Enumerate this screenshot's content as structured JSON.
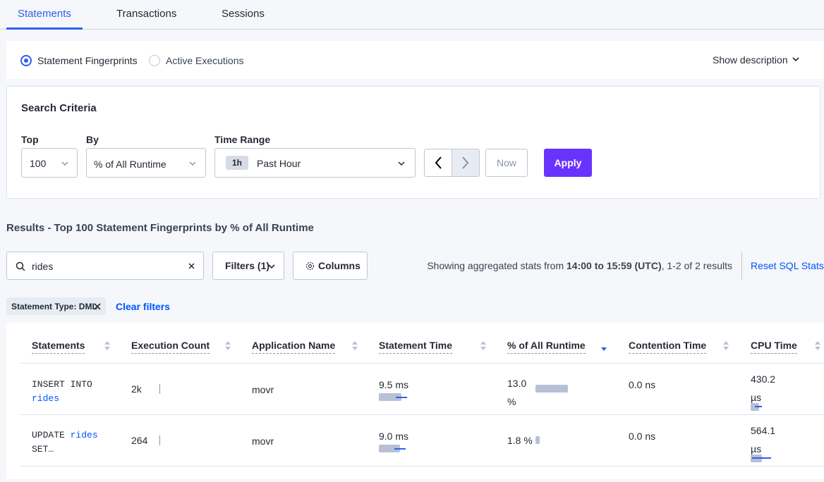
{
  "tabs": [
    "Statements",
    "Transactions",
    "Sessions"
  ],
  "mode_options": [
    "Statement Fingerprints",
    "Active Executions"
  ],
  "show_description": "Show description",
  "search_criteria": {
    "title": "Search Criteria",
    "top_label": "Top",
    "top_value": "100",
    "by_label": "By",
    "by_value": "% of All Runtime",
    "time_range_label": "Time Range",
    "time_badge": "1h",
    "time_value": "Past Hour",
    "now": "Now",
    "apply": "Apply"
  },
  "results_title": "Results - Top 100 Statement Fingerprints by % of All Runtime",
  "search_value": "rides",
  "filters": "Filters (1)",
  "columns": "Columns",
  "stats": {
    "prefix": "Showing aggregated stats from",
    "range": "14:00 to 15:59 (UTC)",
    "suffix": ", 1-2 of 2 results"
  },
  "reset": "Reset SQL Stats",
  "filter_tag": "Statement Type: DML",
  "clear_filters": "Clear filters",
  "table": {
    "headers": [
      "Statements",
      "Execution Count",
      "Application Name",
      "Statement Time",
      "% of All Runtime",
      "Contention Time",
      "CPU Time"
    ],
    "rows": [
      {
        "statement": [
          "INSERT INTO",
          "rides"
        ],
        "cells": [
          "2k",
          "movr",
          "9.5 ms",
          "13.0 %",
          "0.0 ns",
          "430.2 µs"
        ]
      },
      {
        "statement": [
          "UPDATE",
          "rides",
          "SET…"
        ],
        "cells": [
          "264",
          "movr",
          "9.0 ms",
          "1.8 %",
          "0.0 ns",
          "564.1 µs"
        ]
      }
    ]
  }
}
